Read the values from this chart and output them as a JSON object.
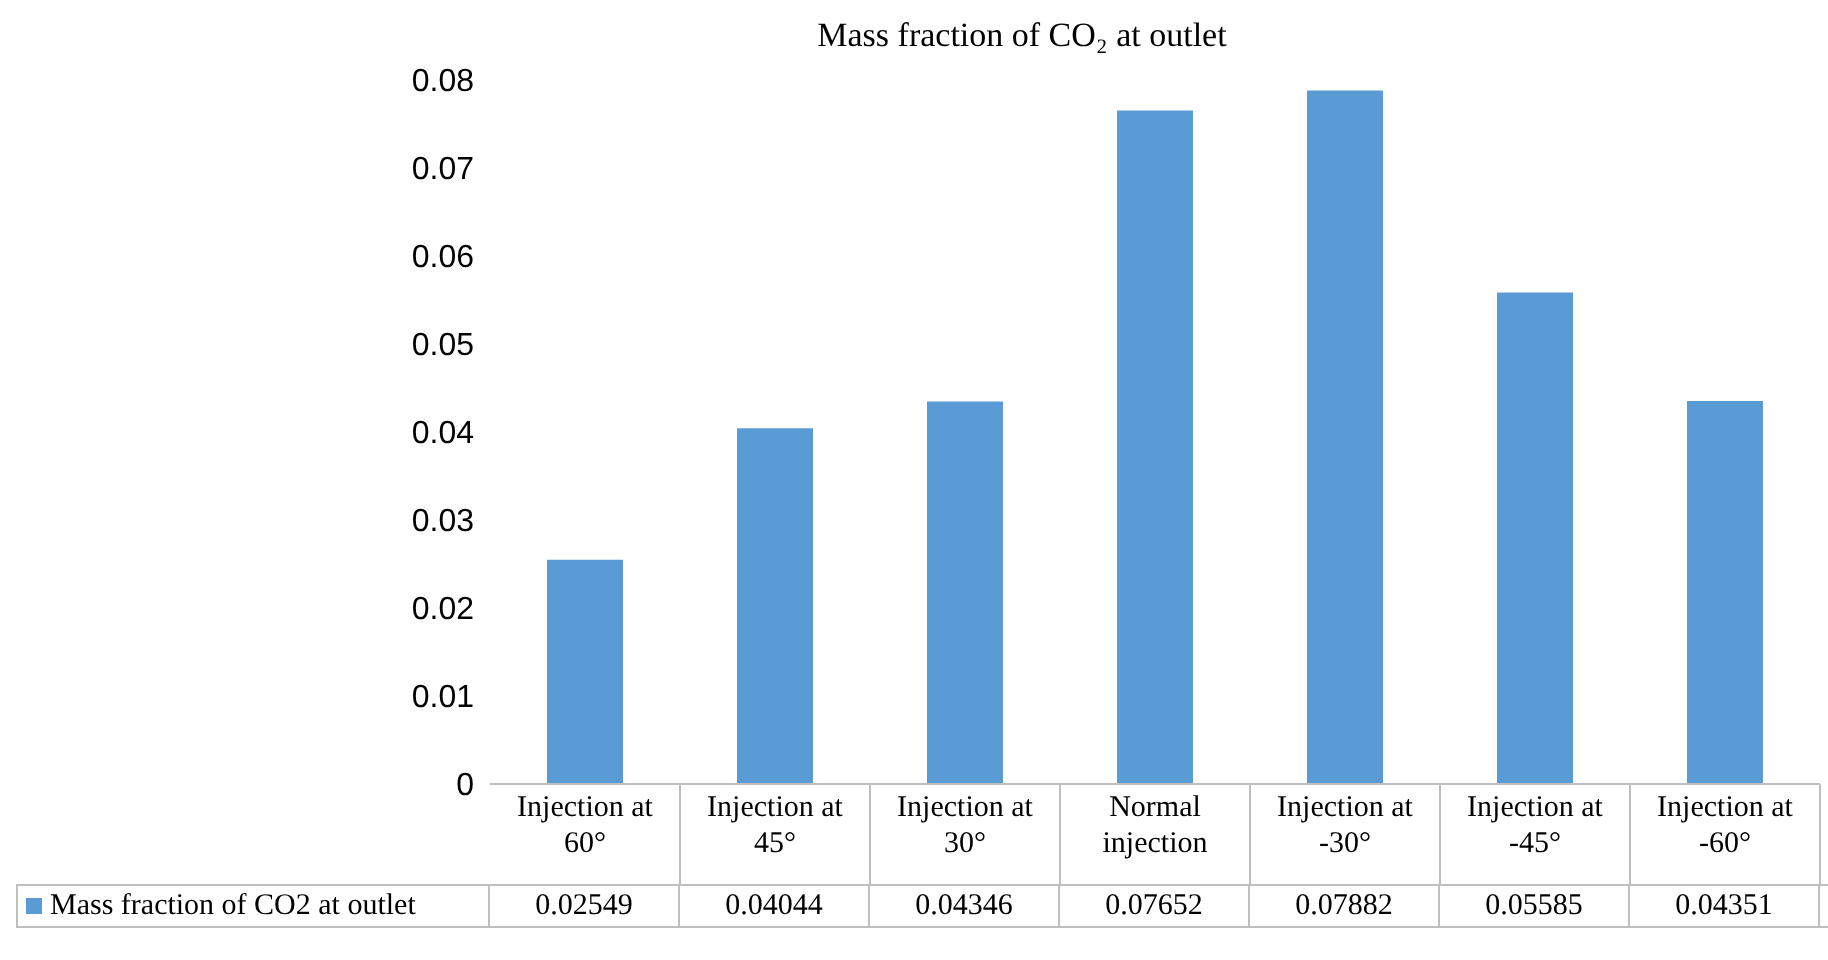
{
  "chart_data": {
    "type": "bar",
    "title": "Mass fraction of CO₂ at outlet",
    "categories": [
      "Injection at 60°",
      "Injection at 45°",
      "Injection at 30°",
      "Normal injection",
      "Injection at -30°",
      "Injection at -45°",
      "Injection at -60°"
    ],
    "series": [
      {
        "name": "Mass fraction of CO2 at outlet",
        "color": "#5b9bd5",
        "values": [
          0.02549,
          0.04044,
          0.04346,
          0.07652,
          0.07882,
          0.05585,
          0.04351
        ]
      }
    ],
    "ylim": [
      0,
      0.08
    ],
    "yticks": [
      0,
      0.01,
      0.02,
      0.03,
      0.04,
      0.05,
      0.06,
      0.07,
      0.08
    ],
    "grid": false,
    "legend": "bottom",
    "data_labels": true
  }
}
